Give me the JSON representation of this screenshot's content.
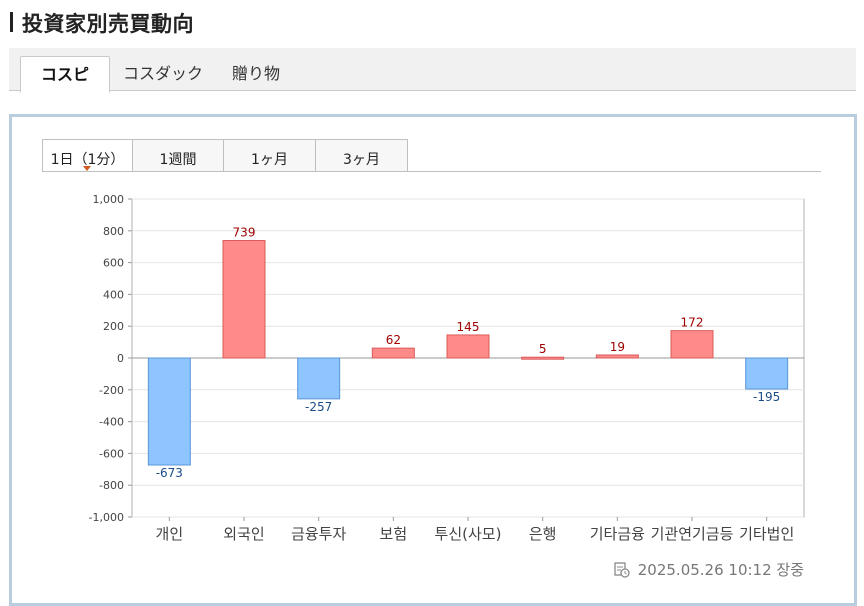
{
  "title": "投資家別売買動向",
  "main_tabs": [
    {
      "label": "コスピ",
      "active": true
    },
    {
      "label": "コスダック",
      "active": false
    },
    {
      "label": "贈り物",
      "active": false
    }
  ],
  "period_tabs": [
    {
      "label": "1日（1分）",
      "active": true
    },
    {
      "label": "1週間",
      "active": false
    },
    {
      "label": "1ヶ月",
      "active": false
    },
    {
      "label": "3ヶ月",
      "active": false
    }
  ],
  "timestamp": "2025.05.26 10:12 장중",
  "colors": {
    "positive_fill": "#ff8a8a",
    "positive_stroke": "#d95b5b",
    "positive_label": "#a00000",
    "negative_fill": "#8ec4ff",
    "negative_stroke": "#5b97d9",
    "negative_label": "#1a4c8a"
  },
  "chart_data": {
    "type": "bar",
    "categories": [
      "개인",
      "외국인",
      "금융투자",
      "보험",
      "투신(사모)",
      "은행",
      "기타금융",
      "기관연기금등",
      "기타법인"
    ],
    "values": [
      -673,
      739,
      -257,
      62,
      145,
      5,
      19,
      172,
      -195
    ],
    "data_labels": [
      "-673",
      "739",
      "-257",
      "62",
      "145",
      "5",
      "19",
      "172",
      "-195"
    ],
    "y_ticks": [
      "1,000",
      "800",
      "600",
      "400",
      "200",
      "0",
      "-200",
      "-400",
      "-600",
      "-800",
      "-1,000"
    ],
    "ylim": [
      -1000,
      1000
    ],
    "grid": true
  }
}
